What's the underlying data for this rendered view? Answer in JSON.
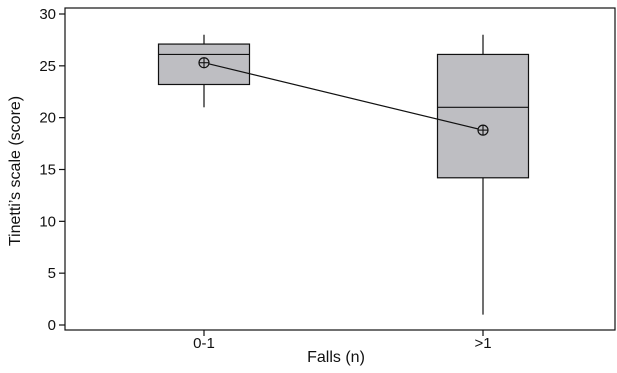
{
  "chart_data": {
    "type": "box",
    "title": "",
    "xlabel": "Falls (n)",
    "ylabel": "Tinetti’s scale (score)",
    "ylim": [
      0,
      30
    ],
    "yticks": [
      0,
      5,
      10,
      15,
      20,
      25,
      30
    ],
    "categories": [
      "0-1",
      ">1"
    ],
    "boxes": [
      {
        "category": "0-1",
        "min": 21,
        "q1": 23.2,
        "median": 26.1,
        "q3": 27.1,
        "max": 28,
        "mean": 25.3
      },
      {
        "category": ">1",
        "min": 1,
        "q1": 14.2,
        "median": 21,
        "q3": 26.1,
        "max": 28,
        "mean": 18.8
      }
    ],
    "mean_line": true,
    "grid": false,
    "colors": {
      "box_fill": "#bebec2",
      "stroke": "#111111"
    }
  }
}
